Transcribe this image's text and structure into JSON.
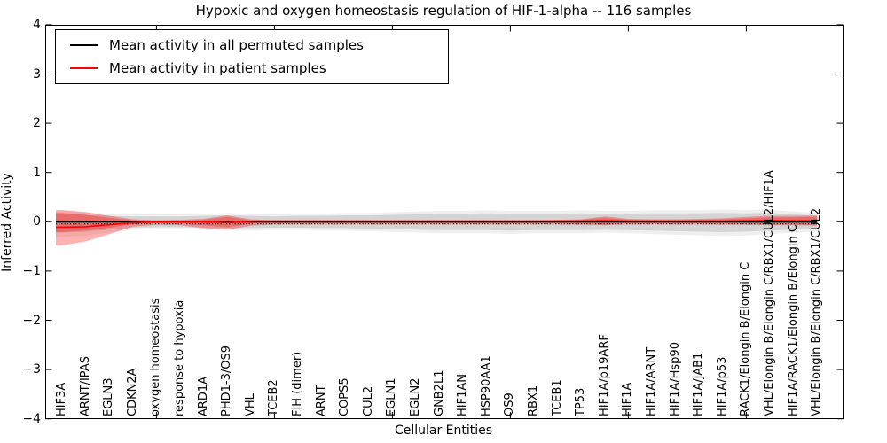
{
  "title": "Hypoxic and oxygen homeostasis regulation of HIF-1-alpha -- 116 samples",
  "legend": {
    "entries": [
      {
        "label": "Mean activity in all permuted samples",
        "color": "#000000"
      },
      {
        "label": "Mean activity in patient samples",
        "color": "#ff0000"
      }
    ]
  },
  "axes": {
    "ylabel": "Inferred Activity",
    "xlabel": "Cellular Entities",
    "ytick_labels": [
      "4",
      "3",
      "2",
      "1",
      "0",
      "−1",
      "−2",
      "−3",
      "−4"
    ],
    "ytick_values": [
      4,
      3,
      2,
      1,
      0,
      -1,
      -2,
      -3,
      -4
    ]
  },
  "colors": {
    "permuted_line": "#000000",
    "patient_line": "#ff0000",
    "permuted_band": "#787878",
    "patient_band": "#ff0000",
    "spine": "#000000",
    "background": "#ffffff"
  },
  "chart_data": {
    "type": "line",
    "title": "Hypoxic and oxygen homeostasis regulation of HIF-1-alpha -- 116 samples",
    "xlabel": "Cellular Entities",
    "ylabel": "Inferred Activity",
    "ylim": [
      -4,
      4
    ],
    "yticks": [
      -4,
      -3,
      -2,
      -1,
      0,
      1,
      2,
      3,
      4
    ],
    "xtick_indices": [
      4,
      9,
      14,
      19,
      24,
      29
    ],
    "legend_position": "upper left",
    "grid": false,
    "categories": [
      "HIF3A",
      "ARNT/IPAS",
      "EGLN3",
      "CDKN2A",
      "oxygen homeostasis",
      "response to hypoxia",
      "ARD1A",
      "PHD1-3/OS9",
      "VHL",
      "TCEB2",
      "FIH (dimer)",
      "ARNT",
      "COPS5",
      "CUL2",
      "EGLN1",
      "EGLN2",
      "GNB2L1",
      "HIF1AN",
      "HSP90AA1",
      "OS9",
      "RBX1",
      "TCEB1",
      "TP53",
      "HIF1A/p19ARF",
      "HIF1A",
      "HIF1A/ARNT",
      "HIF1A/Hsp90",
      "HIF1A/JAB1",
      "HIF1A/p53",
      "RACK1/Elongin B/Elongin C",
      "VHL/Elongin B/Elongin C/RBX1/CUL2/HIF1A",
      "HIF1A/RACK1/Elongin B/Elongin C",
      "VHL/Elongin B/Elongin C/RBX1/CUL2"
    ],
    "series": [
      {
        "name": "Mean activity in all permuted samples",
        "values": [
          -0.005,
          -0.005,
          -0.005,
          -0.005,
          -0.005,
          -0.005,
          -0.005,
          -0.005,
          -0.005,
          -0.005,
          -0.005,
          -0.005,
          -0.005,
          -0.005,
          -0.005,
          -0.005,
          -0.005,
          -0.005,
          -0.005,
          -0.005,
          -0.005,
          -0.005,
          -0.005,
          -0.005,
          -0.005,
          -0.005,
          -0.005,
          -0.005,
          -0.005,
          -0.005,
          -0.005,
          -0.005,
          -0.005
        ]
      },
      {
        "name": "Mean activity in patient samples",
        "values": [
          -0.11,
          -0.1,
          -0.06,
          -0.02,
          -0.005,
          0.005,
          0.0,
          -0.02,
          0.01,
          0.015,
          0.015,
          0.015,
          0.015,
          0.015,
          0.015,
          0.015,
          0.015,
          0.015,
          0.015,
          0.015,
          0.015,
          0.015,
          0.015,
          0.02,
          0.015,
          0.015,
          0.015,
          0.015,
          0.015,
          0.02,
          0.025,
          0.02,
          0.02
        ]
      }
    ],
    "bands": {
      "permuted_spread": [
        [
          0.16,
          -0.22
        ],
        [
          0.14,
          -0.2
        ],
        [
          0.12,
          -0.16
        ],
        [
          0.11,
          -0.12
        ],
        [
          0.11,
          -0.11
        ],
        [
          0.11,
          -0.11
        ],
        [
          0.12,
          -0.12
        ],
        [
          0.13,
          -0.13
        ],
        [
          0.12,
          -0.13
        ],
        [
          0.11,
          -0.12
        ],
        [
          0.12,
          -0.12
        ],
        [
          0.12,
          -0.13
        ],
        [
          0.13,
          -0.13
        ],
        [
          0.13,
          -0.14
        ],
        [
          0.14,
          -0.15
        ],
        [
          0.15,
          -0.16
        ],
        [
          0.16,
          -0.17
        ],
        [
          0.16,
          -0.17
        ],
        [
          0.17,
          -0.17
        ],
        [
          0.16,
          -0.18
        ],
        [
          0.16,
          -0.17
        ],
        [
          0.16,
          -0.17
        ],
        [
          0.17,
          -0.17
        ],
        [
          0.16,
          -0.16
        ],
        [
          0.16,
          -0.17
        ],
        [
          0.17,
          -0.18
        ],
        [
          0.17,
          -0.19
        ],
        [
          0.17,
          -0.2
        ],
        [
          0.18,
          -0.21
        ],
        [
          0.17,
          -0.2
        ],
        [
          0.18,
          -0.18
        ],
        [
          0.15,
          -0.16
        ],
        [
          0.13,
          -0.14
        ]
      ],
      "patient_spread_outer": [
        [
          0.24,
          -0.48
        ],
        [
          0.2,
          -0.4
        ],
        [
          0.12,
          -0.25
        ],
        [
          0.05,
          -0.1
        ],
        [
          0.03,
          -0.06
        ],
        [
          0.04,
          -0.07
        ],
        [
          0.06,
          -0.13
        ],
        [
          0.13,
          -0.16
        ],
        [
          0.05,
          -0.08
        ],
        [
          0.03,
          -0.05
        ],
        [
          0.03,
          -0.05
        ],
        [
          0.03,
          -0.05
        ],
        [
          0.03,
          -0.05
        ],
        [
          0.03,
          -0.05
        ],
        [
          0.03,
          -0.05
        ],
        [
          0.03,
          -0.05
        ],
        [
          0.03,
          -0.05
        ],
        [
          0.03,
          -0.05
        ],
        [
          0.03,
          -0.05
        ],
        [
          0.03,
          -0.05
        ],
        [
          0.03,
          -0.05
        ],
        [
          0.04,
          -0.05
        ],
        [
          0.05,
          -0.06
        ],
        [
          0.11,
          -0.07
        ],
        [
          0.06,
          -0.05
        ],
        [
          0.05,
          -0.05
        ],
        [
          0.05,
          -0.05
        ],
        [
          0.06,
          -0.05
        ],
        [
          0.07,
          -0.06
        ],
        [
          0.1,
          -0.06
        ],
        [
          0.12,
          -0.07
        ],
        [
          0.12,
          -0.07
        ],
        [
          0.13,
          -0.08
        ]
      ],
      "patient_spread_inner": [
        [
          0.18,
          -0.21
        ],
        [
          0.14,
          -0.18
        ],
        [
          0.08,
          -0.12
        ],
        [
          0.03,
          -0.05
        ],
        [
          0.02,
          -0.03
        ],
        [
          0.02,
          -0.04
        ],
        [
          0.04,
          -0.07
        ],
        [
          0.1,
          -0.11
        ],
        [
          0.03,
          -0.04
        ],
        [
          0.02,
          -0.03
        ],
        [
          0.02,
          -0.03
        ],
        [
          0.02,
          -0.03
        ],
        [
          0.02,
          -0.03
        ],
        [
          0.02,
          -0.03
        ],
        [
          0.02,
          -0.03
        ],
        [
          0.02,
          -0.03
        ],
        [
          0.02,
          -0.03
        ],
        [
          0.02,
          -0.03
        ],
        [
          0.02,
          -0.03
        ],
        [
          0.02,
          -0.03
        ],
        [
          0.02,
          -0.03
        ],
        [
          0.03,
          -0.03
        ],
        [
          0.04,
          -0.04
        ],
        [
          0.08,
          -0.05
        ],
        [
          0.04,
          -0.03
        ],
        [
          0.03,
          -0.03
        ],
        [
          0.03,
          -0.03
        ],
        [
          0.04,
          -0.03
        ],
        [
          0.05,
          -0.04
        ],
        [
          0.07,
          -0.04
        ],
        [
          0.09,
          -0.05
        ],
        [
          0.09,
          -0.05
        ],
        [
          0.1,
          -0.06
        ]
      ]
    }
  }
}
